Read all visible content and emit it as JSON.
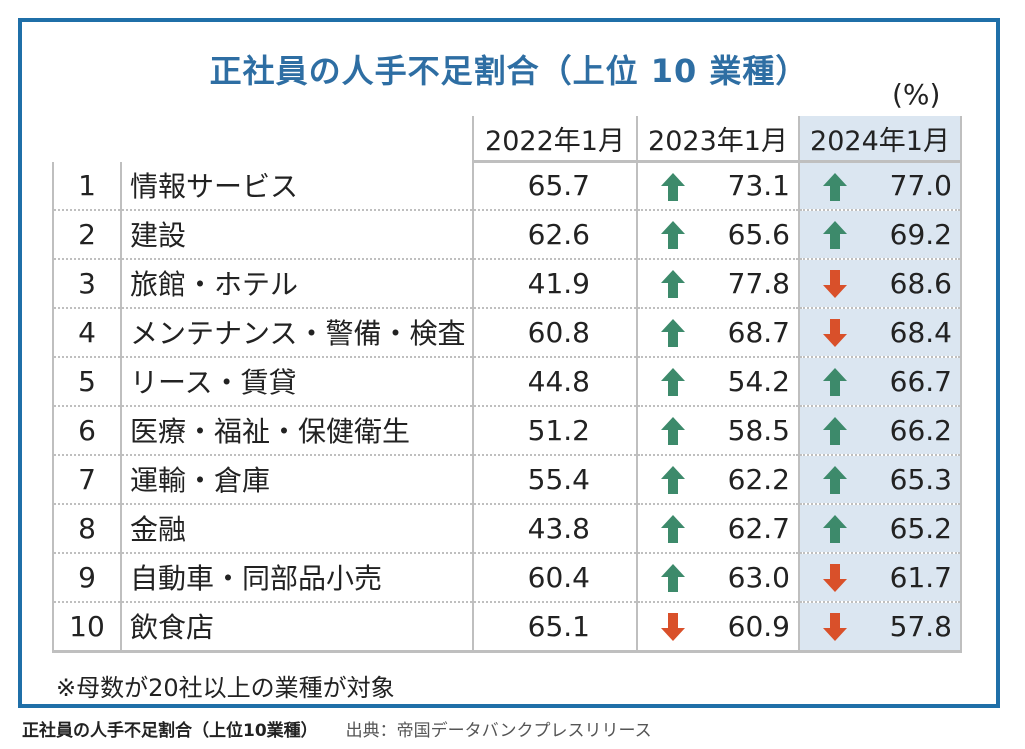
{
  "chart_data": {
    "type": "table",
    "title": "正社員の人手不足割合（上位 10 業種）",
    "unit": "(%)",
    "columns": [
      "2022年1月",
      "2023年1月",
      "2024年1月"
    ],
    "rows": [
      {
        "rank": "1",
        "industry": "情報サービス",
        "v2022": "65.7",
        "v2023": "73.1",
        "d2023": "up",
        "v2024": "77.0",
        "d2024": "up"
      },
      {
        "rank": "2",
        "industry": "建設",
        "v2022": "62.6",
        "v2023": "65.6",
        "d2023": "up",
        "v2024": "69.2",
        "d2024": "up"
      },
      {
        "rank": "3",
        "industry": "旅館・ホテル",
        "v2022": "41.9",
        "v2023": "77.8",
        "d2023": "up",
        "v2024": "68.6",
        "d2024": "down"
      },
      {
        "rank": "4",
        "industry": "メンテナンス・警備・検査",
        "v2022": "60.8",
        "v2023": "68.7",
        "d2023": "up",
        "v2024": "68.4",
        "d2024": "down"
      },
      {
        "rank": "5",
        "industry": "リース・賃貸",
        "v2022": "44.8",
        "v2023": "54.2",
        "d2023": "up",
        "v2024": "66.7",
        "d2024": "up"
      },
      {
        "rank": "6",
        "industry": "医療・福祉・保健衛生",
        "v2022": "51.2",
        "v2023": "58.5",
        "d2023": "up",
        "v2024": "66.2",
        "d2024": "up"
      },
      {
        "rank": "7",
        "industry": "運輸・倉庫",
        "v2022": "55.4",
        "v2023": "62.2",
        "d2023": "up",
        "v2024": "65.3",
        "d2024": "up"
      },
      {
        "rank": "8",
        "industry": "金融",
        "v2022": "43.8",
        "v2023": "62.7",
        "d2023": "up",
        "v2024": "65.2",
        "d2024": "up"
      },
      {
        "rank": "9",
        "industry": "自動車・同部品小売",
        "v2022": "60.4",
        "v2023": "63.0",
        "d2023": "up",
        "v2024": "61.7",
        "d2024": "down"
      },
      {
        "rank": "10",
        "industry": "飲食店",
        "v2022": "65.1",
        "v2023": "60.9",
        "d2023": "down",
        "v2024": "57.8",
        "d2024": "down"
      }
    ],
    "footnote": "※母数が20社以上の業種が対象",
    "colors": {
      "up": "#3d8a6b",
      "down": "#d9502a",
      "highlight": "#dbe6f1",
      "frame": "#1f6fa8",
      "title": "#2e6ea3"
    }
  },
  "caption": {
    "title": "正社員の人手不足割合（上位10業種）",
    "source": "出典：帝国データバンクプレスリリース"
  }
}
